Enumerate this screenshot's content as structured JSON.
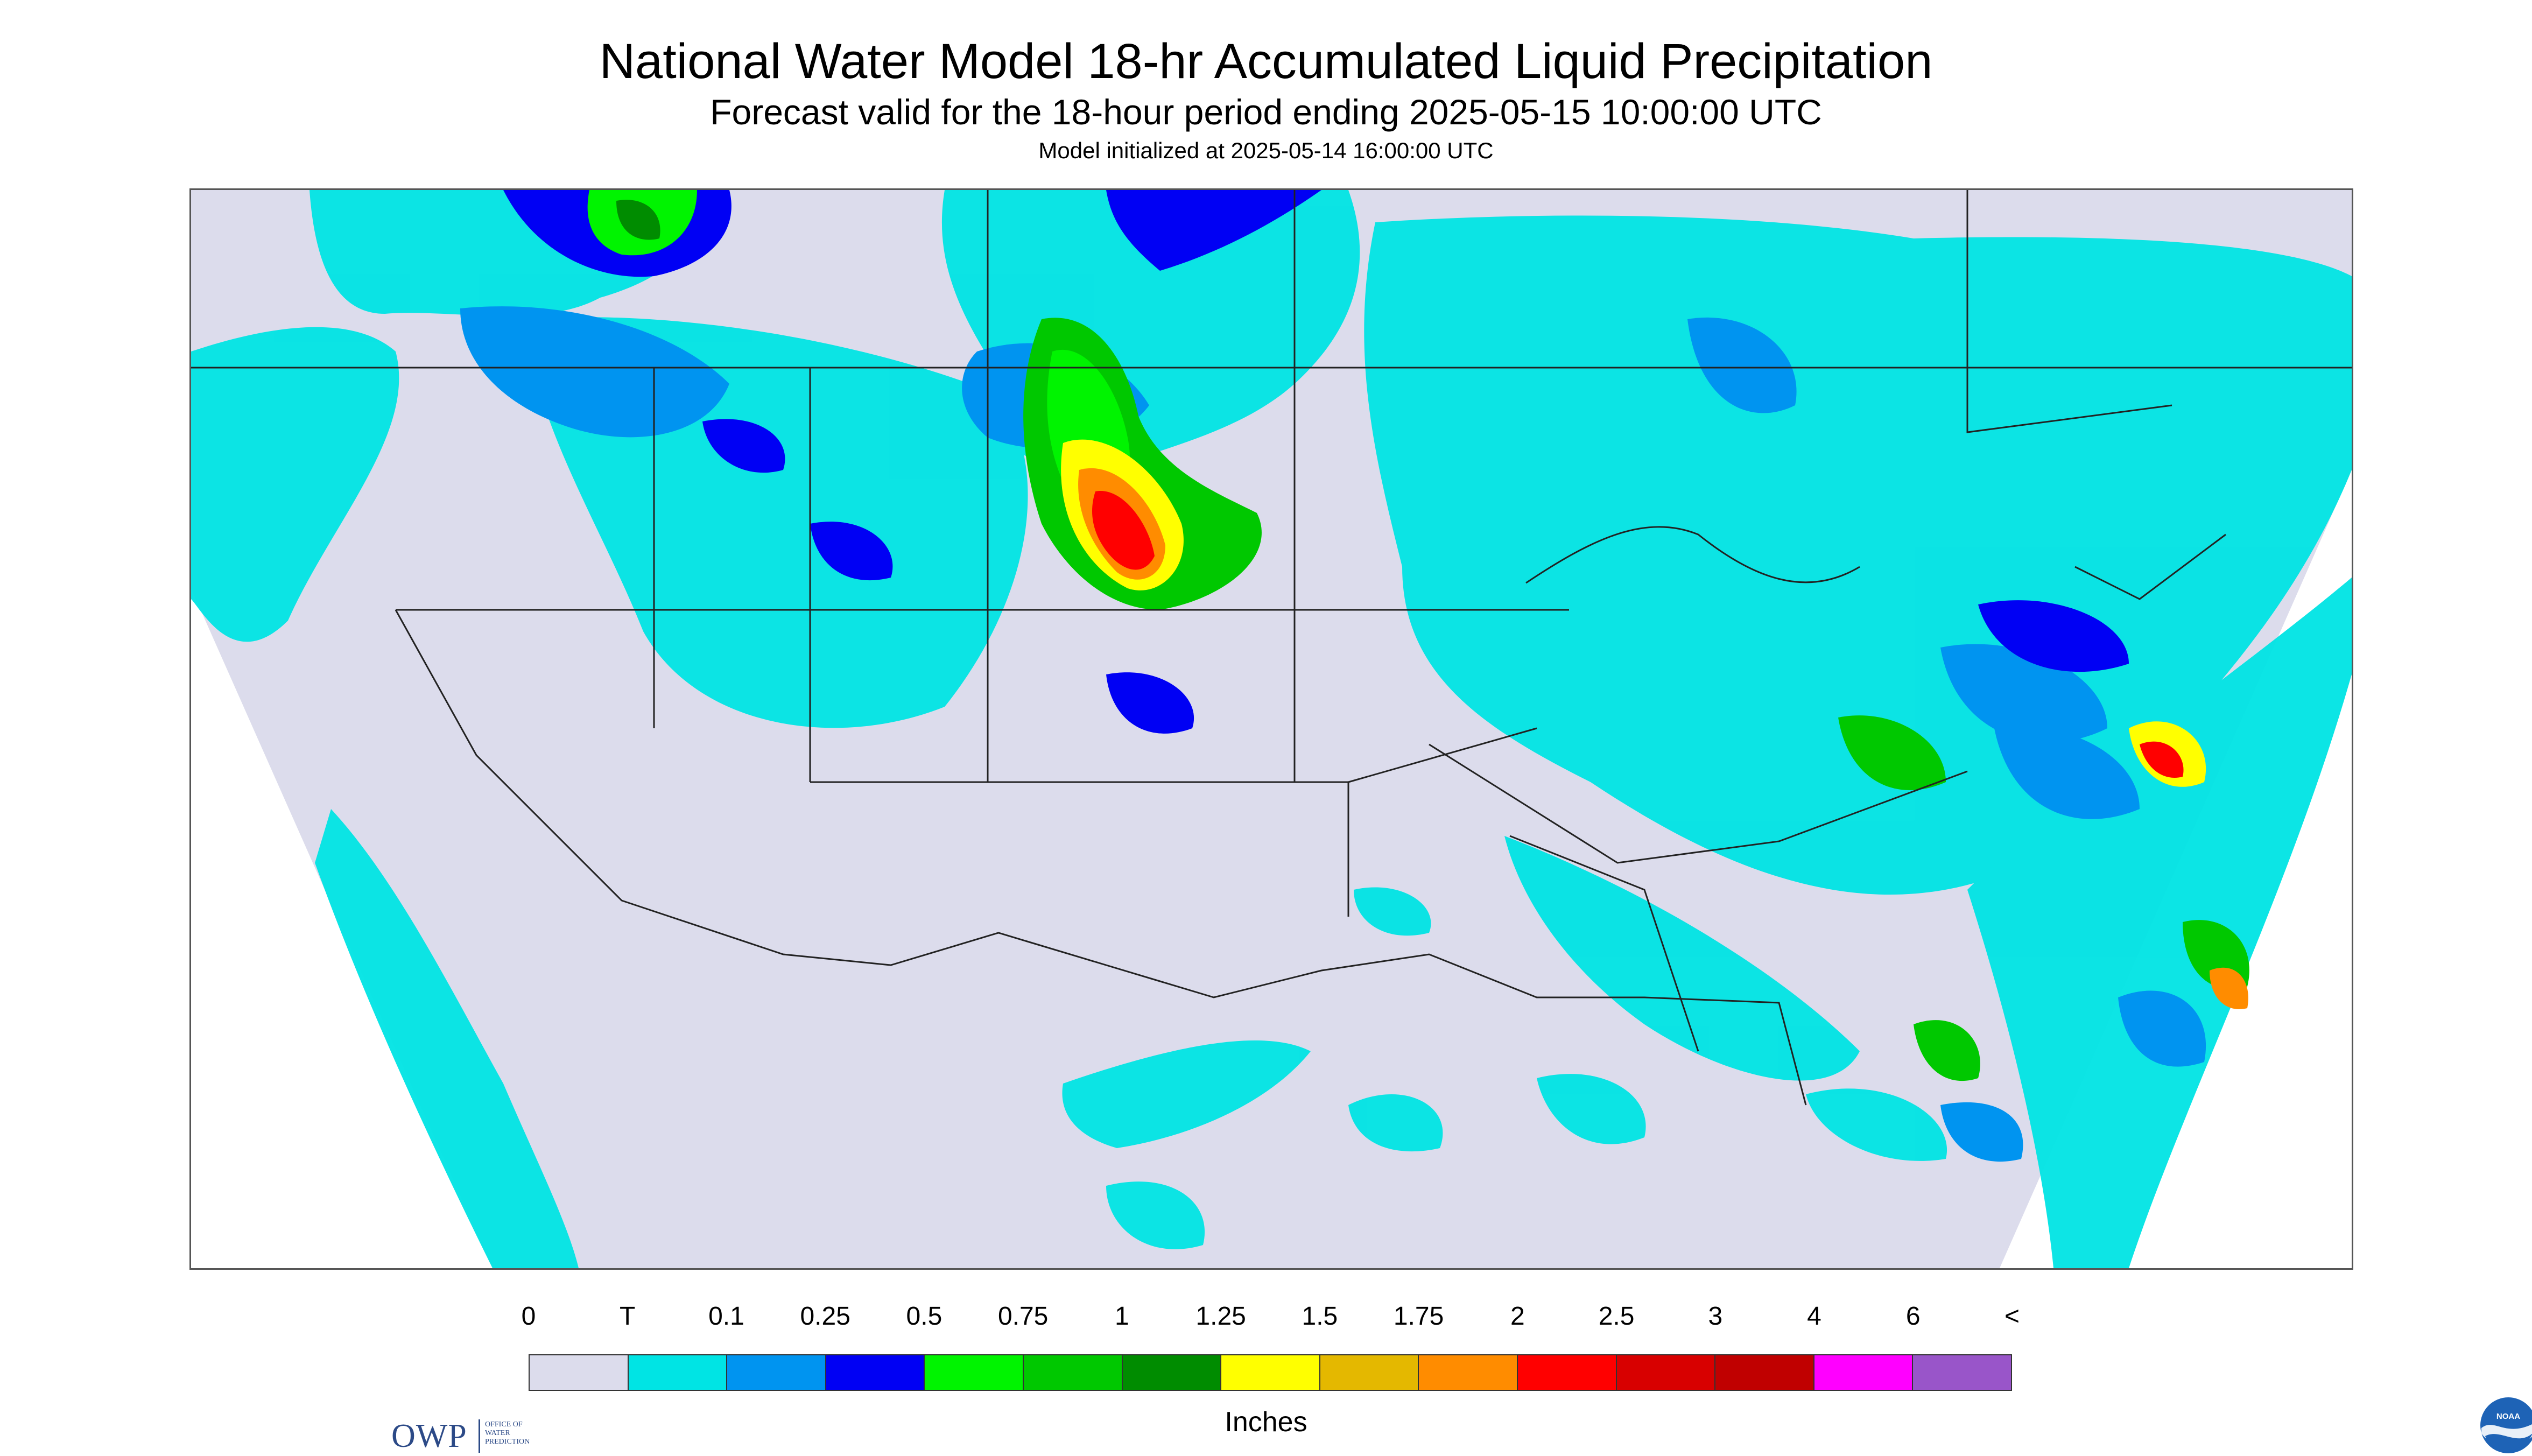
{
  "header": {
    "title": "National Water Model 18-hr Accumulated Liquid Precipitation",
    "subtitle": "Forecast valid for the 18-hour period ending 2025-05-15 10:00:00 UTC",
    "init_line": "Model initialized at 2025-05-14 16:00:00 UTC"
  },
  "logos": {
    "owp_mark": "OWP",
    "owp_name": "OFFICE OF\nWATER\nPREDICTION",
    "noaa_mark": "NOAA"
  },
  "legend": {
    "labels": [
      "0",
      "T",
      "0.1",
      "0.25",
      "0.5",
      "0.75",
      "1",
      "1.25",
      "1.5",
      "1.75",
      "2",
      "2.5",
      "3",
      "4",
      "6",
      "<"
    ],
    "colors": [
      "#dcdcec",
      "#00e4e4",
      "#0094f0",
      "#0000f4",
      "#00f400",
      "#00c800",
      "#008c00",
      "#ffff00",
      "#e4b800",
      "#ff8c00",
      "#ff0000",
      "#d80000",
      "#c00000",
      "#ff00ff",
      "#9955c9"
    ],
    "units": "Inches"
  },
  "map": {
    "background_color": "#dcdcec",
    "outside_domain_color": "#ffffff",
    "border_color": "#333333"
  }
}
